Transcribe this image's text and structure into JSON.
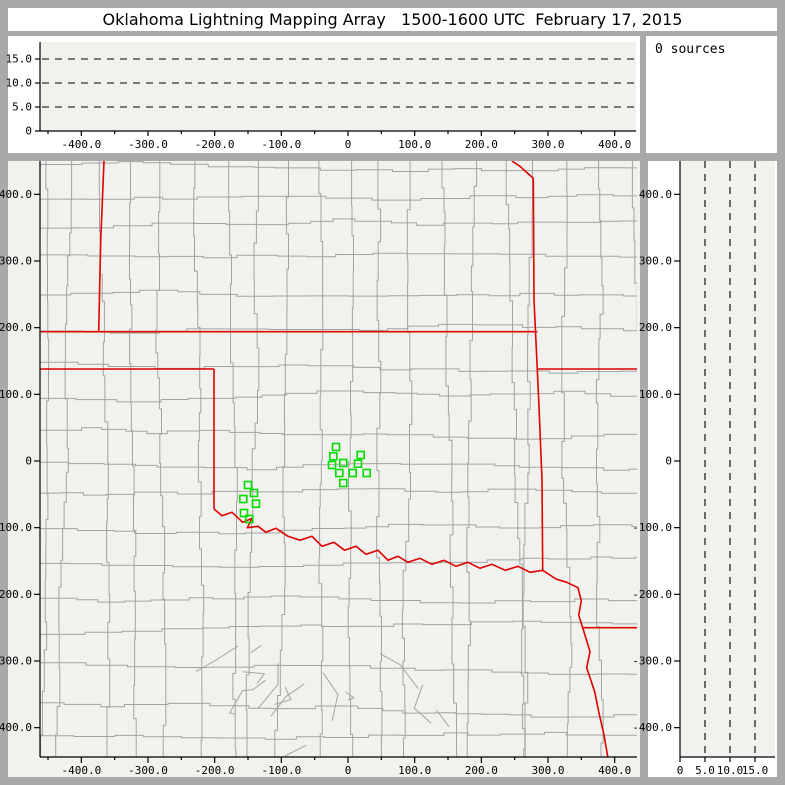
{
  "window": {
    "title": "Oklahoma Lightning Mapping Array   1500-1600 UTC  February 17, 2015"
  },
  "sources_panel": {
    "label": "0 sources",
    "count": 0
  },
  "colors": {
    "frame_gray": "#a9a9a9",
    "panel_white": "#ffffff",
    "plot_bg": "#f1f1ee",
    "county_line": "#a2a2a2",
    "state_line": "#e00000",
    "station_green": "#00dd00",
    "axis_black": "#000000"
  },
  "map_style": {
    "county_seed": 1337
  },
  "chart_data": [
    {
      "panel": "altitude-vs-east-west",
      "type": "scatter",
      "points": [],
      "x_axis": {
        "range_km": [
          -462,
          432
        ],
        "ticks": [
          -400,
          -300,
          -200,
          -100,
          0,
          100,
          200,
          300,
          400
        ],
        "tick_labels": [
          "-400.0",
          "-300.0",
          "-200.0",
          "-100.0",
          "0",
          "100.0",
          "200.0",
          "300.0",
          "400.0"
        ],
        "minor_step_km": 50
      },
      "y_axis": {
        "range_km": [
          0,
          18.5
        ],
        "ticks": [
          0,
          5,
          10,
          15
        ],
        "tick_labels": [
          "0",
          "5.0",
          "10.0",
          "15.0"
        ]
      },
      "gridlines": {
        "orientation": "horizontal",
        "style": "dashed",
        "values": [
          5,
          10,
          15
        ]
      }
    },
    {
      "panel": "source-count-box",
      "type": "text",
      "text": "0 sources"
    },
    {
      "panel": "plan-view-map",
      "type": "scatter",
      "x_axis": {
        "range_km": [
          -462,
          434
        ],
        "ticks": [
          -400,
          -300,
          -200,
          -100,
          0,
          100,
          200,
          300,
          400
        ],
        "tick_labels": [
          "-400.0",
          "-300.0",
          "-200.0",
          "-100.0",
          "0",
          "100.0",
          "200.0",
          "300.0",
          "400.0"
        ],
        "minor_step_km": 50
      },
      "y_axis": {
        "range_km": [
          -446,
          450
        ],
        "ticks": [
          400,
          300,
          200,
          100,
          0,
          -100,
          -200,
          -300,
          -400
        ],
        "tick_labels": [
          "400.0",
          "300.0",
          "200.0",
          "100.0",
          "0",
          "-100.0",
          "-200.0",
          "-300.0",
          "-400.0"
        ]
      },
      "stations_km": [
        [
          -150,
          -36
        ],
        [
          -157,
          -57
        ],
        [
          -141,
          -48
        ],
        [
          -138,
          -64
        ],
        [
          -156,
          -78
        ],
        [
          -148,
          -87
        ],
        [
          -18,
          21
        ],
        [
          -22,
          7
        ],
        [
          -24,
          -6
        ],
        [
          -13,
          -18
        ],
        [
          -7,
          -3
        ],
        [
          -7,
          -33
        ],
        [
          7,
          -18
        ],
        [
          19,
          9
        ],
        [
          15,
          -4
        ],
        [
          28,
          -18
        ]
      ],
      "state_borders_km": {
        "colorado_kansas_102W": [
          [
            -366,
            450
          ],
          [
            -371,
            330
          ],
          [
            -374,
            195
          ]
        ],
        "oklahoma_kansas_37N": [
          [
            -462,
            194
          ],
          [
            284,
            194
          ]
        ],
        "texas_panhandle_north_36p5N": [
          [
            -462,
            138
          ],
          [
            -201,
            138
          ]
        ],
        "oklahoma_west_100W": [
          [
            -201,
            138
          ],
          [
            -201,
            -72
          ]
        ],
        "red_river_ok_tx": [
          [
            -201,
            -72
          ],
          [
            -189,
            -82
          ],
          [
            -174,
            -77
          ],
          [
            -158,
            -92
          ],
          [
            -144,
            -86
          ],
          [
            -151,
            -100
          ],
          [
            -135,
            -98
          ],
          [
            -123,
            -107
          ],
          [
            -108,
            -101
          ],
          [
            -90,
            -113
          ],
          [
            -72,
            -119
          ],
          [
            -54,
            -113
          ],
          [
            -39,
            -128
          ],
          [
            -21,
            -122
          ],
          [
            -5,
            -134
          ],
          [
            12,
            -128
          ],
          [
            27,
            -140
          ],
          [
            45,
            -134
          ],
          [
            60,
            -149
          ],
          [
            75,
            -143
          ],
          [
            90,
            -152
          ],
          [
            108,
            -146
          ],
          [
            126,
            -155
          ],
          [
            144,
            -149
          ],
          [
            162,
            -158
          ],
          [
            180,
            -152
          ],
          [
            198,
            -161
          ],
          [
            216,
            -155
          ],
          [
            236,
            -164
          ],
          [
            255,
            -158
          ],
          [
            273,
            -167
          ],
          [
            292,
            -164
          ]
        ],
        "kansas_missouri_ok_arkansas_east": [
          [
            246,
            450
          ],
          [
            258,
            442
          ],
          [
            269,
            432
          ],
          [
            278,
            424
          ],
          [
            279,
            242
          ],
          [
            286,
            92
          ],
          [
            291,
            -28
          ],
          [
            292,
            -164
          ]
        ],
        "missouri_arkansas_36p5N": [
          [
            284,
            138
          ],
          [
            434,
            138
          ]
        ],
        "texas_arkansas": [
          [
            292,
            -164
          ],
          [
            312,
            -177
          ],
          [
            328,
            -182
          ],
          [
            345,
            -190
          ],
          [
            350,
            -210
          ],
          [
            346,
            -231
          ],
          [
            352,
            -250
          ]
        ],
        "arkansas_louisiana_33N": [
          [
            352,
            -250
          ],
          [
            434,
            -250
          ]
        ],
        "texas_louisiana": [
          [
            352,
            -250
          ],
          [
            363,
            -286
          ],
          [
            358,
            -310
          ],
          [
            370,
            -346
          ],
          [
            376,
            -376
          ],
          [
            384,
            -411
          ],
          [
            390,
            -446
          ]
        ]
      }
    },
    {
      "panel": "altitude-vs-north-south",
      "type": "scatter",
      "points": [],
      "x_axis": {
        "range_km": [
          0,
          19
        ],
        "ticks": [
          0,
          5,
          10,
          15
        ],
        "tick_labels": [
          "0",
          "5.0",
          "10.0",
          "15.0"
        ]
      },
      "y_axis": {
        "range_km": [
          -446,
          450
        ],
        "ticks": [
          400,
          300,
          200,
          100,
          0,
          -100,
          -200,
          -300,
          -400
        ],
        "tick_labels": [
          "400.0",
          "300.0",
          "200.0",
          "100.0",
          "0",
          "-100.0",
          "-200.0",
          "-300.0",
          "-400.0"
        ]
      },
      "gridlines": {
        "orientation": "vertical",
        "style": "dashed",
        "values": [
          5,
          10,
          15
        ]
      }
    }
  ]
}
